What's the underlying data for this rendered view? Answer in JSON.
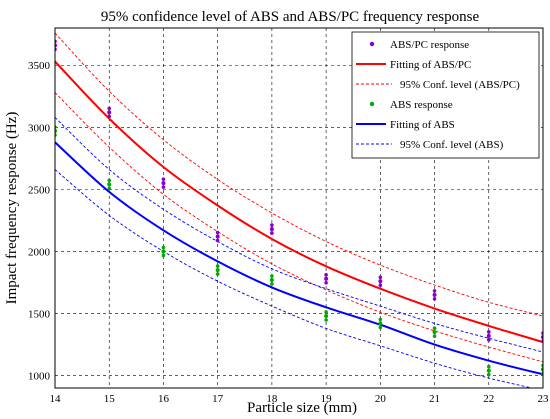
{
  "chart_data": {
    "type": "scatter",
    "title": "95% confidence level of ABS and ABS/PC frequency response",
    "xlabel": "Particle size (mm)",
    "ylabel": "Impact frequency response (Hz)",
    "xlim": [
      14,
      23
    ],
    "ylim": [
      900,
      3800
    ],
    "xticks": [
      14,
      15,
      16,
      17,
      18,
      19,
      20,
      21,
      22,
      23
    ],
    "yticks": [
      1000,
      1500,
      2000,
      2500,
      3000,
      3500
    ],
    "grid": true,
    "legend_position": "top-right",
    "series": [
      {
        "name": "ABS/PC response",
        "kind": "points",
        "color": "#8800cc",
        "x": [
          14,
          15,
          16,
          17,
          18,
          19,
          20,
          21,
          22,
          23
        ],
        "y": [
          3660,
          3120,
          2550,
          2120,
          2180,
          1780,
          1760,
          1650,
          1320,
          1310
        ]
      },
      {
        "name": "Fitting of ABS/PC",
        "kind": "line",
        "color": "#ff0000",
        "x": [
          14,
          15,
          16,
          17,
          18,
          19,
          20,
          21,
          22,
          23
        ],
        "y": [
          3530,
          3070,
          2680,
          2370,
          2100,
          1880,
          1700,
          1540,
          1400,
          1270
        ]
      },
      {
        "name": "95% Conf. level (ABS/PC)",
        "kind": "dashed",
        "color": "#ff0000",
        "band": [
          {
            "x": [
              14,
              15,
              16,
              17,
              18,
              19,
              20,
              21,
              22,
              23
            ],
            "y": [
              3760,
              3290,
              2900,
              2580,
              2310,
              2080,
              1890,
              1730,
              1590,
              1480
            ]
          },
          {
            "x": [
              14,
              15,
              16,
              17,
              18,
              19,
              20,
              21,
              22,
              23
            ],
            "y": [
              3280,
              2840,
              2460,
              2160,
              1900,
              1690,
              1510,
              1360,
              1230,
              1110
            ]
          }
        ]
      },
      {
        "name": "ABS response",
        "kind": "points",
        "color": "#00aa00",
        "x": [
          14,
          15,
          16,
          17,
          18,
          19,
          20,
          21,
          22,
          23
        ],
        "y": [
          2970,
          2540,
          2000,
          1850,
          1770,
          1480,
          1420,
          1350,
          1040,
          1050
        ]
      },
      {
        "name": "Fitting of ABS",
        "kind": "line",
        "color": "#0000ff",
        "x": [
          14,
          15,
          16,
          17,
          18,
          19,
          20,
          21,
          22,
          23
        ],
        "y": [
          2880,
          2480,
          2170,
          1920,
          1710,
          1550,
          1410,
          1250,
          1120,
          1010
        ]
      },
      {
        "name": "95% Conf. level (ABS)",
        "kind": "dashed",
        "color": "#0000ff",
        "band": [
          {
            "x": [
              14,
              15,
              16,
              17,
              18,
              19,
              20,
              21,
              22,
              23
            ],
            "y": [
              3080,
              2660,
              2340,
              2080,
              1860,
              1700,
              1560,
              1420,
              1300,
              1190
            ]
          },
          {
            "x": [
              14,
              15,
              16,
              17,
              18,
              19,
              20,
              21,
              22,
              23
            ],
            "y": [
              2660,
              2290,
              2000,
              1760,
              1560,
              1380,
              1240,
              1100,
              980,
              880
            ]
          }
        ]
      }
    ]
  }
}
